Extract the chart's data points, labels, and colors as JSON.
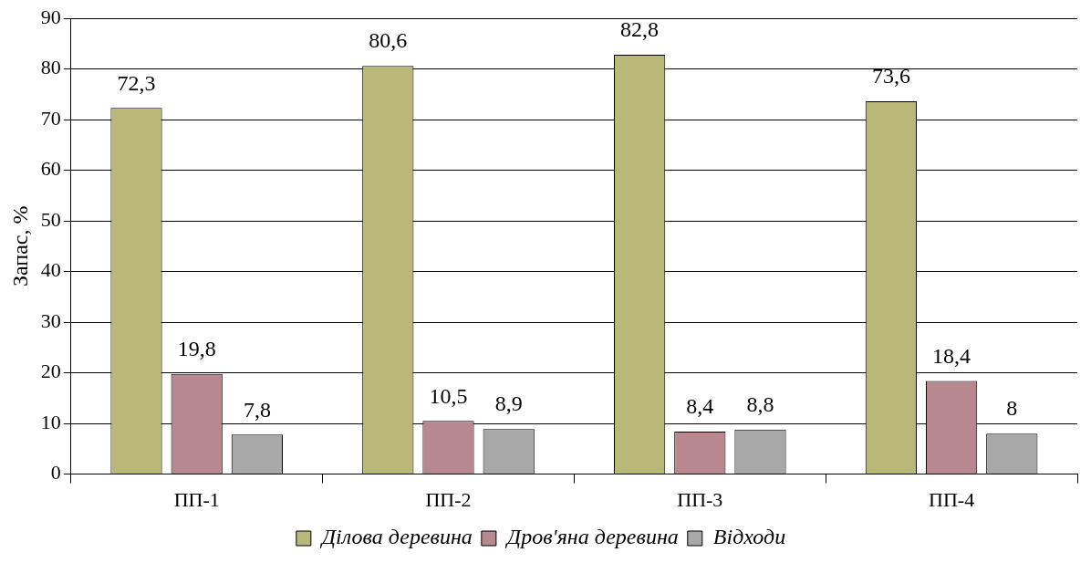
{
  "chart_data": {
    "type": "bar",
    "ylabel": "Запас, %",
    "categories": [
      "ПП-1",
      "ПП-2",
      "ПП-3",
      "ПП-4"
    ],
    "series": [
      {
        "name": "Ділова деревина",
        "color": "#b8b878",
        "values": [
          72.3,
          80.6,
          82.8,
          73.6
        ],
        "value_labels": [
          "72,3",
          "80,6",
          "82,8",
          "73,6"
        ]
      },
      {
        "name": "Дров'яна деревина",
        "color": "#b88890",
        "values": [
          19.8,
          10.5,
          8.4,
          18.4
        ],
        "value_labels": [
          "19,8",
          "10,5",
          "8,4",
          "18,4"
        ]
      },
      {
        "name": "Відходи",
        "color": "#a8a8a8",
        "values": [
          7.8,
          8.9,
          8.8,
          8
        ],
        "value_labels": [
          "7,8",
          "8,9",
          "8,8",
          "8"
        ]
      }
    ],
    "ylim": [
      0,
      90
    ],
    "yticks": [
      0,
      10,
      20,
      30,
      40,
      50,
      60,
      70,
      80,
      90
    ],
    "grid": "y",
    "legend": "bottom"
  }
}
